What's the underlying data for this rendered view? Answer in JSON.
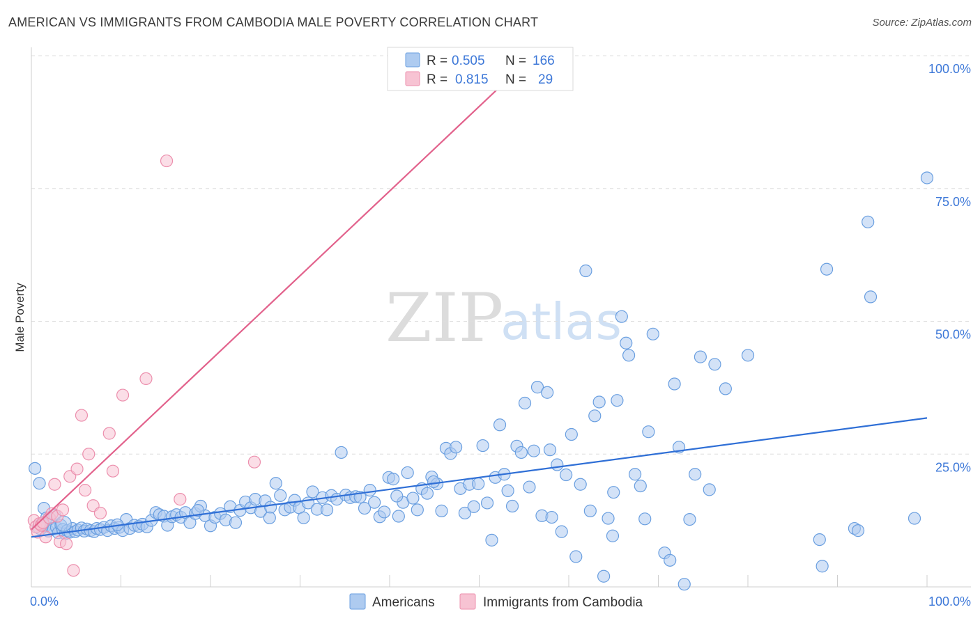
{
  "title": "AMERICAN VS IMMIGRANTS FROM CAMBODIA MALE POVERTY CORRELATION CHART",
  "source": "Source: ZipAtlas.com",
  "watermark": {
    "zip": "ZIP",
    "atlas": "atlas"
  },
  "colors": {
    "americans_fill": "#aecbf0",
    "americans_stroke": "#6a9fe0",
    "americans_line": "#2f6fd6",
    "cambodia_fill": "#f7c3d3",
    "cambodia_stroke": "#ec8fad",
    "cambodia_line": "#e2628c",
    "tick": "#3d78d8",
    "grid": "#dddddd"
  },
  "legend": {
    "items": [
      {
        "r_label": "R =",
        "r_value": "0.505",
        "n_label": "N =",
        "n_value": "166"
      },
      {
        "r_label": "R =",
        "r_value": "0.815",
        "n_label": "N =",
        "n_value": "29"
      }
    ]
  },
  "chart_data": {
    "type": "scatter",
    "xlabel": "",
    "ylabel": "Male Poverty",
    "xlim": [
      0,
      100
    ],
    "ylim": [
      0,
      100
    ],
    "x_ticks": [
      "0.0%",
      "100.0%"
    ],
    "y_ticks": [
      {
        "value": 25,
        "label": "25.0%"
      },
      {
        "value": 50,
        "label": "50.0%"
      },
      {
        "value": 75,
        "label": "75.0%"
      },
      {
        "value": 100,
        "label": "100.0%"
      }
    ],
    "grid": "horizontal dashed",
    "legend_placement": "top-center",
    "series": [
      {
        "name": "Americans",
        "r": 0.505,
        "n": 166,
        "trend": {
          "x": [
            0,
            100
          ],
          "y": [
            9.4,
            31.8
          ]
        },
        "points": [
          [
            0.4,
            22.3
          ],
          [
            0.9,
            19.5
          ],
          [
            1.4,
            14.8
          ],
          [
            1.5,
            11.4
          ],
          [
            1.7,
            13.0
          ],
          [
            1.9,
            10.5
          ],
          [
            2.1,
            12.8
          ],
          [
            2.3,
            11.0
          ],
          [
            2.6,
            13.5
          ],
          [
            2.8,
            11.2
          ],
          [
            3.0,
            10.2
          ],
          [
            3.3,
            11.6
          ],
          [
            3.5,
            10.8
          ],
          [
            3.8,
            10.0
          ],
          [
            4.0,
            10.6
          ],
          [
            4.3,
            10.3
          ],
          [
            4.6,
            11.0
          ],
          [
            4.9,
            10.4
          ],
          [
            5.2,
            10.7
          ],
          [
            5.6,
            11.1
          ],
          [
            5.9,
            10.5
          ],
          [
            6.2,
            10.9
          ],
          [
            6.6,
            10.6
          ],
          [
            7.0,
            10.4
          ],
          [
            7.3,
            11.0
          ],
          [
            7.7,
            10.8
          ],
          [
            8.1,
            11.2
          ],
          [
            8.5,
            10.6
          ],
          [
            8.9,
            11.5
          ],
          [
            9.3,
            11.0
          ],
          [
            9.8,
            11.2
          ],
          [
            10.2,
            10.6
          ],
          [
            10.6,
            12.7
          ],
          [
            11.0,
            11.0
          ],
          [
            11.5,
            11.6
          ],
          [
            12.0,
            11.4
          ],
          [
            12.4,
            11.8
          ],
          [
            12.9,
            11.3
          ],
          [
            13.4,
            12.5
          ],
          [
            13.9,
            14.0
          ],
          [
            14.3,
            13.6
          ],
          [
            14.8,
            13.3
          ],
          [
            15.2,
            11.6
          ],
          [
            15.7,
            13.2
          ],
          [
            16.2,
            13.6
          ],
          [
            16.7,
            13.1
          ],
          [
            17.2,
            14.0
          ],
          [
            17.7,
            12.1
          ],
          [
            18.3,
            13.8
          ],
          [
            18.9,
            15.2
          ],
          [
            19.4,
            13.4
          ],
          [
            20.0,
            11.5
          ],
          [
            20.5,
            13.1
          ],
          [
            21.1,
            13.8
          ],
          [
            21.7,
            12.6
          ],
          [
            22.2,
            15.1
          ],
          [
            22.8,
            12.1
          ],
          [
            23.3,
            14.4
          ],
          [
            23.9,
            16.0
          ],
          [
            24.5,
            14.9
          ],
          [
            25.0,
            16.5
          ],
          [
            25.6,
            14.2
          ],
          [
            26.1,
            16.2
          ],
          [
            26.7,
            15.0
          ],
          [
            27.3,
            19.5
          ],
          [
            27.8,
            17.2
          ],
          [
            28.3,
            14.5
          ],
          [
            28.9,
            15.0
          ],
          [
            29.4,
            16.3
          ],
          [
            29.9,
            14.9
          ],
          [
            30.4,
            13.0
          ],
          [
            30.9,
            15.8
          ],
          [
            31.4,
            17.9
          ],
          [
            31.9,
            14.6
          ],
          [
            32.5,
            16.8
          ],
          [
            33.0,
            14.5
          ],
          [
            33.5,
            17.2
          ],
          [
            34.1,
            16.5
          ],
          [
            34.6,
            25.3
          ],
          [
            35.1,
            17.3
          ],
          [
            35.6,
            16.8
          ],
          [
            36.2,
            17.0
          ],
          [
            36.7,
            16.9
          ],
          [
            37.2,
            14.8
          ],
          [
            37.8,
            18.2
          ],
          [
            38.3,
            15.9
          ],
          [
            38.9,
            13.2
          ],
          [
            39.4,
            14.1
          ],
          [
            39.9,
            20.6
          ],
          [
            40.4,
            20.3
          ],
          [
            41.0,
            13.3
          ],
          [
            41.5,
            15.9
          ],
          [
            42.0,
            21.5
          ],
          [
            42.6,
            16.7
          ],
          [
            43.1,
            14.5
          ],
          [
            43.6,
            18.5
          ],
          [
            44.2,
            17.6
          ],
          [
            44.7,
            20.7
          ],
          [
            45.3,
            19.4
          ],
          [
            45.8,
            14.3
          ],
          [
            46.3,
            26.1
          ],
          [
            46.8,
            25.1
          ],
          [
            47.4,
            26.3
          ],
          [
            47.9,
            18.5
          ],
          [
            48.4,
            13.9
          ],
          [
            48.9,
            19.3
          ],
          [
            49.4,
            15.1
          ],
          [
            49.9,
            19.4
          ],
          [
            50.4,
            26.6
          ],
          [
            50.9,
            15.8
          ],
          [
            51.4,
            8.8
          ],
          [
            51.8,
            20.6
          ],
          [
            52.3,
            30.5
          ],
          [
            52.8,
            21.2
          ],
          [
            53.2,
            18.1
          ],
          [
            53.7,
            15.2
          ],
          [
            54.2,
            26.5
          ],
          [
            54.7,
            25.3
          ],
          [
            55.1,
            34.6
          ],
          [
            55.6,
            18.8
          ],
          [
            56.1,
            25.6
          ],
          [
            56.5,
            37.6
          ],
          [
            57.0,
            13.4
          ],
          [
            57.6,
            36.6
          ],
          [
            58.1,
            13.1
          ],
          [
            58.7,
            23.0
          ],
          [
            59.2,
            10.4
          ],
          [
            59.7,
            21.1
          ],
          [
            60.3,
            28.7
          ],
          [
            60.8,
            5.7
          ],
          [
            61.3,
            19.3
          ],
          [
            61.9,
            59.5
          ],
          [
            62.4,
            14.3
          ],
          [
            62.9,
            32.2
          ],
          [
            63.4,
            34.8
          ],
          [
            63.9,
            2.0
          ],
          [
            64.4,
            12.9
          ],
          [
            64.9,
            9.6
          ],
          [
            65.4,
            35.1
          ],
          [
            65.9,
            50.9
          ],
          [
            66.4,
            45.9
          ],
          [
            66.7,
            43.6
          ],
          [
            67.4,
            21.2
          ],
          [
            68.0,
            19.0
          ],
          [
            68.5,
            12.8
          ],
          [
            68.9,
            29.2
          ],
          [
            69.4,
            47.6
          ],
          [
            70.7,
            6.4
          ],
          [
            71.3,
            5.0
          ],
          [
            71.8,
            38.2
          ],
          [
            72.3,
            26.3
          ],
          [
            72.9,
            0.5
          ],
          [
            73.5,
            12.7
          ],
          [
            74.1,
            21.2
          ],
          [
            74.7,
            43.3
          ],
          [
            75.7,
            18.3
          ],
          [
            76.3,
            41.9
          ],
          [
            77.5,
            37.3
          ],
          [
            80.0,
            43.6
          ],
          [
            88.0,
            8.9
          ],
          [
            88.3,
            3.9
          ],
          [
            88.8,
            59.8
          ],
          [
            91.9,
            11.0
          ],
          [
            92.3,
            10.6
          ],
          [
            93.4,
            68.7
          ],
          [
            93.7,
            54.6
          ],
          [
            98.6,
            12.9
          ],
          [
            100.0,
            77.0
          ],
          [
            1.3,
            11.9
          ],
          [
            9.6,
            11.7
          ],
          [
            26.6,
            13.0
          ],
          [
            40.8,
            17.1
          ],
          [
            44.9,
            19.8
          ],
          [
            57.9,
            25.8
          ],
          [
            65.0,
            17.8
          ],
          [
            18.6,
            14.4
          ]
        ]
      },
      {
        "name": "Immigrants from Cambodia",
        "r": 0.815,
        "n": 29,
        "trend": {
          "x": [
            0,
            56
          ],
          "y": [
            10.8,
            100
          ]
        },
        "points": [
          [
            0.3,
            12.5
          ],
          [
            0.5,
            11.3
          ],
          [
            0.7,
            10.3
          ],
          [
            0.9,
            11.9
          ],
          [
            1.1,
            11.6
          ],
          [
            1.3,
            12.1
          ],
          [
            1.6,
            9.4
          ],
          [
            2.0,
            13.0
          ],
          [
            2.3,
            13.8
          ],
          [
            2.6,
            19.3
          ],
          [
            2.9,
            13.3
          ],
          [
            3.2,
            8.5
          ],
          [
            3.5,
            14.5
          ],
          [
            3.9,
            8.1
          ],
          [
            4.3,
            20.8
          ],
          [
            4.7,
            3.1
          ],
          [
            5.1,
            22.2
          ],
          [
            5.6,
            32.3
          ],
          [
            6.0,
            18.2
          ],
          [
            6.4,
            25.0
          ],
          [
            6.9,
            15.3
          ],
          [
            7.7,
            13.9
          ],
          [
            8.7,
            28.9
          ],
          [
            9.1,
            21.8
          ],
          [
            10.2,
            36.1
          ],
          [
            12.8,
            39.2
          ],
          [
            15.1,
            80.2
          ],
          [
            16.6,
            16.5
          ],
          [
            24.9,
            23.5
          ]
        ]
      }
    ]
  }
}
